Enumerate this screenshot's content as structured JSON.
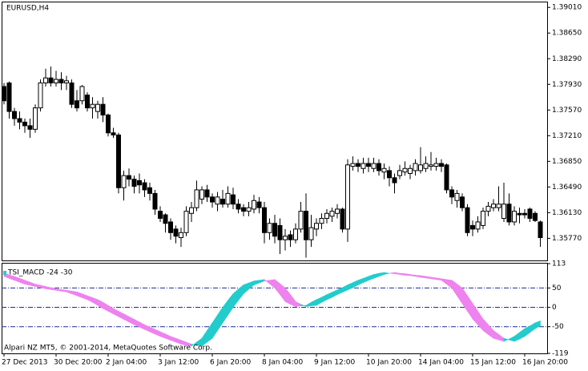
{
  "chart_data": [
    {
      "type": "candlestick",
      "title": "EURUSD,H4",
      "categories": [
        "27 Dec 2013",
        null,
        null,
        null,
        null,
        null,
        null,
        null,
        null,
        null,
        "30 Dec 20:00",
        null,
        null,
        null,
        null,
        null,
        null,
        null,
        null,
        null,
        "2 Jan 04:00",
        null,
        null,
        null,
        null,
        null,
        null,
        null,
        null,
        null,
        "3 Jan 12:00",
        null,
        null,
        null,
        null,
        null,
        null,
        null,
        null,
        null,
        "6 Jan 20:00",
        null,
        null,
        null,
        null,
        null,
        null,
        null,
        null,
        null,
        "8 Jan 04:00",
        null,
        null,
        null,
        null,
        null,
        null,
        null,
        null,
        null,
        "9 Jan 12:00",
        null,
        null,
        null,
        null,
        null,
        null,
        null,
        null,
        null,
        "10 Jan 20:00",
        null,
        null,
        null,
        null,
        null,
        null,
        null,
        null,
        null,
        "14 Jan 04:00",
        null,
        null,
        null,
        null,
        null,
        null,
        null,
        null,
        null,
        "15 Jan 12:00",
        null,
        null,
        null,
        null,
        null,
        null,
        null,
        null,
        null,
        "16 Jan 20:00",
        null,
        null,
        null
      ],
      "open": [
        1.379,
        1.3795,
        1.3755,
        1.3745,
        1.374,
        1.3735,
        1.373,
        1.376,
        1.3795,
        1.3802,
        1.3795,
        1.38,
        1.3795,
        1.3795,
        1.377,
        1.377,
        1.3778,
        1.376,
        1.3755,
        1.3765,
        1.375,
        1.3725,
        1.3722,
        1.3648,
        1.3665,
        1.366,
        1.3658,
        1.3655,
        1.3648,
        1.364,
        1.3615,
        1.361,
        1.36,
        1.359,
        1.3578,
        1.3585,
        1.3612,
        1.362,
        1.3632,
        1.3645,
        1.3635,
        1.3625,
        1.3632,
        1.3625,
        1.3638,
        1.3625,
        1.362,
        1.3615,
        1.3618,
        1.3628,
        1.362,
        1.3585,
        1.3598,
        1.3595,
        1.3575,
        1.3582,
        1.3575,
        1.359,
        1.3615,
        1.3575,
        1.359,
        1.3598,
        1.3605,
        1.3608,
        1.3612,
        1.3618,
        1.359,
        1.3678,
        1.3682,
        1.3675,
        1.3682,
        1.3675,
        1.3682,
        1.367,
        1.3672,
        1.3662,
        1.3665,
        1.367,
        1.3668,
        1.3672,
        1.3672,
        1.3675,
        1.3678,
        1.3678,
        1.3682,
        1.368,
        1.3645,
        1.363,
        1.3635,
        1.362,
        1.3595,
        1.359,
        1.3595,
        1.3615,
        1.362,
        1.362,
        1.3605,
        1.3625,
        1.36,
        1.3612,
        1.3612,
        1.3618,
        1.3612,
        1.36
      ],
      "high": [
        1.3795,
        1.3797,
        1.376,
        1.3755,
        1.3745,
        1.3745,
        1.3765,
        1.38,
        1.3815,
        1.3818,
        1.3812,
        1.381,
        1.3805,
        1.38,
        1.3785,
        1.3792,
        1.3782,
        1.3775,
        1.377,
        1.3775,
        1.3752,
        1.3732,
        1.3725,
        1.3672,
        1.3675,
        1.3665,
        1.3668,
        1.366,
        1.3655,
        1.3645,
        1.3622,
        1.3612,
        1.3605,
        1.3595,
        1.3592,
        1.3622,
        1.3628,
        1.3658,
        1.365,
        1.3652,
        1.364,
        1.3642,
        1.3645,
        1.365,
        1.3648,
        1.3632,
        1.3625,
        1.3628,
        1.3638,
        1.3635,
        1.3628,
        1.3605,
        1.361,
        1.3605,
        1.359,
        1.3588,
        1.3598,
        1.3628,
        1.364,
        1.361,
        1.3605,
        1.3612,
        1.3618,
        1.362,
        1.3625,
        1.362,
        1.3688,
        1.3692,
        1.3688,
        1.369,
        1.369,
        1.369,
        1.3688,
        1.3682,
        1.3678,
        1.3668,
        1.368,
        1.3685,
        1.368,
        1.3688,
        1.3705,
        1.3692,
        1.3698,
        1.369,
        1.3688,
        1.3682,
        1.365,
        1.3645,
        1.364,
        1.3625,
        1.3602,
        1.3608,
        1.362,
        1.3628,
        1.3632,
        1.365,
        1.3655,
        1.364,
        1.3622,
        1.362,
        1.3618,
        1.362,
        1.3615,
        1.3602
      ],
      "low": [
        1.3765,
        1.3745,
        1.3735,
        1.373,
        1.3725,
        1.3718,
        1.3725,
        1.3755,
        1.379,
        1.379,
        1.379,
        1.3785,
        1.3785,
        1.376,
        1.3755,
        1.3765,
        1.3755,
        1.3745,
        1.3745,
        1.374,
        1.372,
        1.3718,
        1.364,
        1.363,
        1.365,
        1.364,
        1.364,
        1.3635,
        1.363,
        1.361,
        1.36,
        1.3585,
        1.3575,
        1.357,
        1.3565,
        1.358,
        1.36,
        1.3615,
        1.3625,
        1.3628,
        1.362,
        1.3615,
        1.362,
        1.362,
        1.3618,
        1.3612,
        1.3608,
        1.3608,
        1.3612,
        1.3612,
        1.357,
        1.3575,
        1.357,
        1.3555,
        1.356,
        1.3565,
        1.357,
        1.3585,
        1.355,
        1.3565,
        1.358,
        1.359,
        1.3598,
        1.36,
        1.3605,
        1.3585,
        1.3572,
        1.3672,
        1.367,
        1.3668,
        1.367,
        1.367,
        1.3665,
        1.366,
        1.365,
        1.364,
        1.366,
        1.3665,
        1.366,
        1.3665,
        1.3668,
        1.367,
        1.3672,
        1.3672,
        1.367,
        1.364,
        1.3625,
        1.362,
        1.3615,
        1.358,
        1.358,
        1.3585,
        1.359,
        1.3608,
        1.3615,
        1.3615,
        1.36,
        1.3595,
        1.3595,
        1.3598,
        1.3605,
        1.36,
        1.36,
        1.3565
      ],
      "close": [
        1.377,
        1.3755,
        1.3745,
        1.374,
        1.3735,
        1.373,
        1.376,
        1.3795,
        1.3802,
        1.3795,
        1.38,
        1.3795,
        1.3798,
        1.3765,
        1.376,
        1.379,
        1.376,
        1.3765,
        1.3765,
        1.375,
        1.3725,
        1.3722,
        1.3648,
        1.3665,
        1.366,
        1.365,
        1.3652,
        1.3645,
        1.364,
        1.3618,
        1.3605,
        1.3598,
        1.3585,
        1.358,
        1.3585,
        1.3615,
        1.362,
        1.3645,
        1.3645,
        1.3635,
        1.3628,
        1.3635,
        1.3625,
        1.364,
        1.3625,
        1.3618,
        1.3615,
        1.362,
        1.363,
        1.362,
        1.3585,
        1.3598,
        1.358,
        1.3575,
        1.358,
        1.3575,
        1.359,
        1.3615,
        1.3575,
        1.3592,
        1.3598,
        1.3605,
        1.3612,
        1.3615,
        1.3618,
        1.359,
        1.368,
        1.3682,
        1.3678,
        1.3682,
        1.3678,
        1.3682,
        1.3672,
        1.3675,
        1.3662,
        1.3655,
        1.3672,
        1.3675,
        1.3675,
        1.3682,
        1.368,
        1.3682,
        1.368,
        1.3682,
        1.3678,
        1.3645,
        1.3635,
        1.364,
        1.362,
        1.3585,
        1.359,
        1.36,
        1.3615,
        1.3622,
        1.3625,
        1.3625,
        1.3625,
        1.36,
        1.3615,
        1.361,
        1.361,
        1.3605,
        1.3602,
        1.3578
      ],
      "up_color": "#ffffff",
      "down_color": "#000000",
      "ylim": [
        1.3546,
        1.3908
      ],
      "yticks": [
        {
          "value": 1.3901,
          "label": "1.39010"
        },
        {
          "value": 1.3865,
          "label": "1.38650"
        },
        {
          "value": 1.3829,
          "label": "1.38290"
        },
        {
          "value": 1.3793,
          "label": "1.37930"
        },
        {
          "value": 1.3757,
          "label": "1.37570"
        },
        {
          "value": 1.3721,
          "label": "1.37210"
        },
        {
          "value": 1.3685,
          "label": "1.36850"
        },
        {
          "value": 1.3649,
          "label": "1.36490"
        },
        {
          "value": 1.3613,
          "label": "1.36130"
        },
        {
          "value": 1.3577,
          "label": "1.35770"
        }
      ]
    },
    {
      "type": "ribbon",
      "title": "TSI_MACD -24 -30",
      "annotation": "Alpari NZ MT5, © 2001-2014, MetaQuotes Software Corp.",
      "series": [
        {
          "values": [
            80,
            75,
            70,
            65,
            60,
            57,
            54,
            51,
            48,
            46,
            44,
            42,
            40,
            35,
            30,
            25,
            20,
            13,
            5,
            -3,
            -10,
            -17,
            -24,
            -31,
            -38,
            -45,
            -51,
            -57,
            -63,
            -69,
            -75,
            -80,
            -85,
            -90,
            -95,
            -98,
            -100,
            -90,
            -80,
            -60,
            -40,
            -20,
            0,
            18,
            35,
            47,
            58,
            63,
            68,
            70,
            72,
            61,
            50,
            33,
            15,
            8,
            2,
            4,
            5,
            13,
            20,
            26,
            33,
            39,
            45,
            51,
            58,
            64,
            70,
            75,
            80,
            85,
            88,
            90,
            88,
            87,
            85,
            83,
            82,
            80,
            78,
            76,
            74,
            72,
            70,
            60,
            50,
            30,
            10,
            -10,
            -30,
            -45,
            -60,
            -70,
            -80,
            -84,
            -88,
            -82,
            -75,
            -65,
            -55,
            -48,
            -40,
            -35
          ]
        },
        {
          "values": [
            88,
            84,
            80,
            75,
            70,
            65,
            60,
            57,
            54,
            51,
            48,
            46,
            44,
            42,
            40,
            35,
            30,
            25,
            20,
            13,
            5,
            -3,
            -10,
            -17,
            -24,
            -31,
            -38,
            -45,
            -51,
            -57,
            -63,
            -69,
            -75,
            -80,
            -85,
            -90,
            -95,
            -98,
            -100,
            -90,
            -80,
            -60,
            -40,
            -20,
            0,
            18,
            35,
            47,
            58,
            63,
            68,
            70,
            72,
            61,
            50,
            33,
            15,
            8,
            2,
            4,
            5,
            13,
            20,
            26,
            33,
            39,
            45,
            51,
            58,
            64,
            70,
            75,
            80,
            85,
            88,
            90,
            88,
            87,
            85,
            83,
            82,
            80,
            78,
            76,
            74,
            72,
            70,
            60,
            50,
            30,
            10,
            -10,
            -30,
            -45,
            -60,
            -70,
            -80,
            -84,
            -88,
            -82,
            -75,
            -65,
            -55,
            -48
          ]
        }
      ],
      "up_color": "#22cccc",
      "down_color": "#ee82ee",
      "grid_color": "#1a2a9a",
      "ylim": [
        -119,
        113
      ],
      "yticks": [
        113,
        50,
        0,
        -50,
        -119
      ]
    }
  ]
}
